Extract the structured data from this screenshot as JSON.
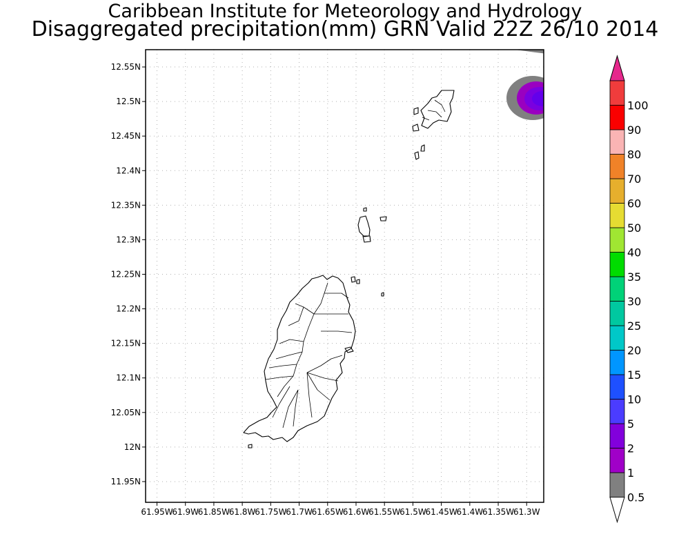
{
  "title": "Caribbean Institute for Meteorology and Hydrology",
  "subtitle": "Disaggregated precipitation(mm) GRN Valid 22Z 26/10 2014",
  "map": {
    "region": "Grenada and the Grenadines",
    "lon_range": [
      -61.97,
      -61.27
    ],
    "lat_range": [
      11.92,
      12.575
    ],
    "x_ticks": [
      "61.95W",
      "61.9W",
      "61.85W",
      "61.8W",
      "61.75W",
      "61.7W",
      "61.65W",
      "61.6W",
      "61.55W",
      "61.5W",
      "61.45W",
      "61.4W",
      "61.35W",
      "61.3W"
    ],
    "y_ticks": [
      "12.55N",
      "12.5N",
      "12.45N",
      "12.4N",
      "12.35N",
      "12.3N",
      "12.25N",
      "12.2N",
      "12.15N",
      "12.1N",
      "12.05N",
      "12N",
      "11.95N"
    ],
    "grid": true,
    "gridline_style": "dotted"
  },
  "colorbar": {
    "unit": "mm",
    "labels": [
      "0.5",
      "1",
      "2",
      "5",
      "10",
      "15",
      "20",
      "25",
      "30",
      "35",
      "40",
      "50",
      "60",
      "70",
      "80",
      "90",
      "100"
    ],
    "colors": [
      "#808080",
      "#a000c8",
      "#8200dc",
      "#4b3cff",
      "#1e50ff",
      "#0096ff",
      "#00c8c8",
      "#00c8a0",
      "#00d278",
      "#00dc00",
      "#a0e632",
      "#e6dc32",
      "#e6af2d",
      "#f08228",
      "#fab4b4",
      "#fa0000",
      "#f03c3c"
    ],
    "over_color": "#e6288c",
    "under_color": "#ffffff"
  },
  "precip_features": [
    {
      "name": "northeast-cell",
      "max_class": "2",
      "classes": [
        "0.5",
        "1",
        "2"
      ]
    },
    {
      "name": "top-right-edge-band",
      "max_class": "0.5",
      "classes": [
        "0.5"
      ]
    }
  ]
}
